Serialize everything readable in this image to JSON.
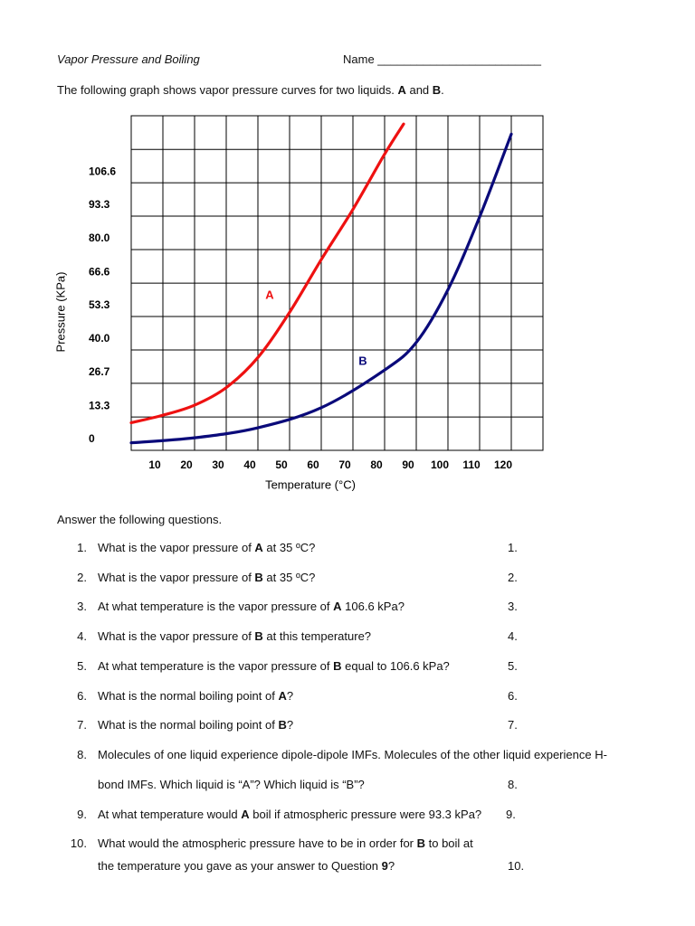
{
  "header": {
    "title": "Vapor Pressure and Boiling",
    "name_field": "Name _________________________"
  },
  "intro": [
    "The following graph shows vapor pressure curves for two liquids.  ",
    "A",
    " and ",
    "B",
    "."
  ],
  "chart_data": {
    "type": "line",
    "x_label": "Temperature (°C)",
    "y_label": "Pressure (KPa)",
    "xlim": [
      0,
      130
    ],
    "ylim": [
      0,
      133.3
    ],
    "xticks": [
      10,
      20,
      30,
      40,
      50,
      60,
      70,
      80,
      90,
      100,
      110,
      120
    ],
    "yticks": [
      0,
      {
        "value": 13.3,
        "label": "13.3"
      },
      {
        "value": 26.7,
        "label": "26.7"
      },
      {
        "value": 40,
        "label": "40.0"
      },
      {
        "value": 53.3,
        "label": "53.3"
      },
      {
        "value": 66.6,
        "label": "66.6"
      },
      {
        "value": 80,
        "label": "80.0"
      },
      {
        "value": 93.3,
        "label": "93.3"
      },
      {
        "value": 106.6,
        "label": "106.6"
      }
    ],
    "grid": true,
    "series": [
      {
        "name": "A",
        "color": "#ee1111",
        "x": [
          0,
          10,
          20,
          30,
          40,
          50,
          60,
          70,
          80,
          86
        ],
        "values": [
          11,
          14,
          18,
          25,
          37,
          55,
          76,
          96,
          118,
          130
        ]
      },
      {
        "name": "B",
        "color": "#0a0a7a",
        "x": [
          0,
          20,
          40,
          60,
          80,
          90,
          100,
          110,
          120
        ],
        "values": [
          3,
          5,
          9,
          17,
          32,
          43,
          64,
          93,
          126
        ]
      }
    ]
  },
  "prompt": "Answer the following questions.",
  "questions": [
    {
      "number": "1.",
      "lines": [
        [
          "What is the vapor pressure of ",
          "A",
          " at 35 ºC?"
        ]
      ],
      "answer": "1."
    },
    {
      "number": "2.",
      "lines": [
        [
          "What is the vapor pressure of ",
          "B",
          " at 35 ºC?"
        ]
      ],
      "answer": "2."
    },
    {
      "number": "3.",
      "lines": [
        [
          "At what temperature is the vapor pressure of ",
          "A",
          " 106.6 kPa?"
        ]
      ],
      "answer": "3."
    },
    {
      "number": "4.",
      "lines": [
        [
          "What is the vapor pressure of ",
          "B",
          " at this temperature?"
        ]
      ],
      "answer": "4."
    },
    {
      "number": "5.",
      "lines": [
        [
          "At what temperature is the vapor pressure of ",
          "B",
          " equal to 106.6 kPa?"
        ]
      ],
      "answer": "5."
    },
    {
      "number": "6.",
      "lines": [
        [
          "What is the normal boiling point of ",
          "A",
          "?"
        ]
      ],
      "answer": "6."
    },
    {
      "number": "7.",
      "lines": [
        [
          "What is the normal boiling point of ",
          "B",
          "?"
        ]
      ],
      "answer": "7."
    },
    {
      "number": "8.",
      "lines": [
        [
          "Molecules of one liquid experience dipole-dipole IMFs. Molecules of the other liquid experience H-"
        ],
        [
          "bond IMFs. Which liquid is “A”? Which liquid is “B”?"
        ]
      ],
      "answer": "8."
    },
    {
      "number": "9.",
      "lines": [
        [
          "At what temperature would ",
          "A",
          " boil if atmospheric pressure were 93.3 kPa?"
        ]
      ],
      "answer": "9."
    },
    {
      "number": "10.",
      "lines": [
        [
          "What would the atmospheric pressure have to be in order for ",
          "B",
          " to boil at"
        ],
        [
          "the temperature you gave as your answer to Question ",
          "9",
          "?"
        ]
      ],
      "answer": "10."
    }
  ]
}
